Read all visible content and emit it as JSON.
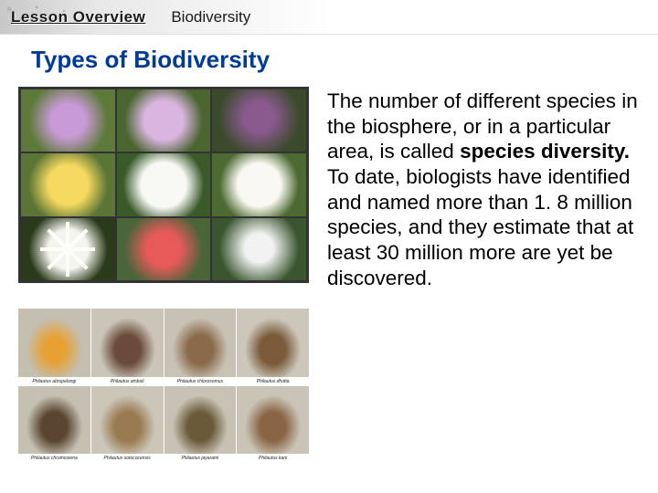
{
  "header": {
    "lessonLabel": "Lesson Overview",
    "subtitle": "Biodiversity"
  },
  "title": "Types of Biodiversity",
  "paragraph": {
    "p1": "The number of different species in the biosphere, or in a particular area, is called ",
    "boldTerm": "species diversity. ",
    "p2": "To date, biologists have identified and named more than 1. 8 million species, and they estimate that at least 30 million more are yet be discovered."
  },
  "flowerGrid": {
    "type": "image-grid",
    "rows": 3,
    "cols": 3,
    "border_color": "#333333",
    "cells": [
      {
        "bg": "#5d7a3a",
        "subject": "purple-thistle",
        "accent": "#c89ad6"
      },
      {
        "bg": "#4a6530",
        "subject": "lilac-globe",
        "accent": "#d9b5e0"
      },
      {
        "bg": "#3a4a2a",
        "subject": "orchid",
        "accent": "#8a5a8f"
      },
      {
        "bg": "#5a7535",
        "subject": "dandelion",
        "accent": "#f5d960"
      },
      {
        "bg": "#3a5a2a",
        "subject": "magnolia",
        "accent": "#f8f8f5"
      },
      {
        "bg": "#4d6a32",
        "subject": "white-flower",
        "accent": "#faf8f2"
      },
      {
        "bg": "#2a3a1a",
        "subject": "star-lily",
        "accent": "#f5f5f0"
      },
      {
        "bg": "#4a653a",
        "subject": "red-flower",
        "accent": "#e85a5a"
      },
      {
        "bg": "#3a5530",
        "subject": "white-flower-2",
        "accent": "#f2f2f2"
      }
    ]
  },
  "frogGrid": {
    "type": "image-grid-captioned",
    "rows": 2,
    "cols": 4,
    "cells": [
      {
        "caption": "Philautus abrupelongi",
        "accent": "#e8a030"
      },
      {
        "caption": "Philautus amboli",
        "accent": "#6a4a3a"
      },
      {
        "caption": "Philautus chlorosomus",
        "accent": "#8a6a4a"
      },
      {
        "caption": "Philautus dhotta",
        "accent": "#7a5a3a"
      },
      {
        "caption": "Philautus chromosema",
        "accent": "#5a4530"
      },
      {
        "caption": "Philautus ootococensis",
        "accent": "#9a7a50"
      },
      {
        "caption": "Philautus jayarami",
        "accent": "#6a5a3a"
      },
      {
        "caption": "Philautus kani",
        "accent": "#8a6545"
      }
    ]
  },
  "colors": {
    "title_color": "#003a9b",
    "text_color": "#000000",
    "background": "#ffffff",
    "header_gradient_from": "#c8c8c8",
    "header_gradient_to": "#ffffff"
  },
  "typography": {
    "title_fontsize": 26,
    "body_fontsize": 22.5,
    "header_fontsize": 17,
    "font_family": "Arial"
  }
}
